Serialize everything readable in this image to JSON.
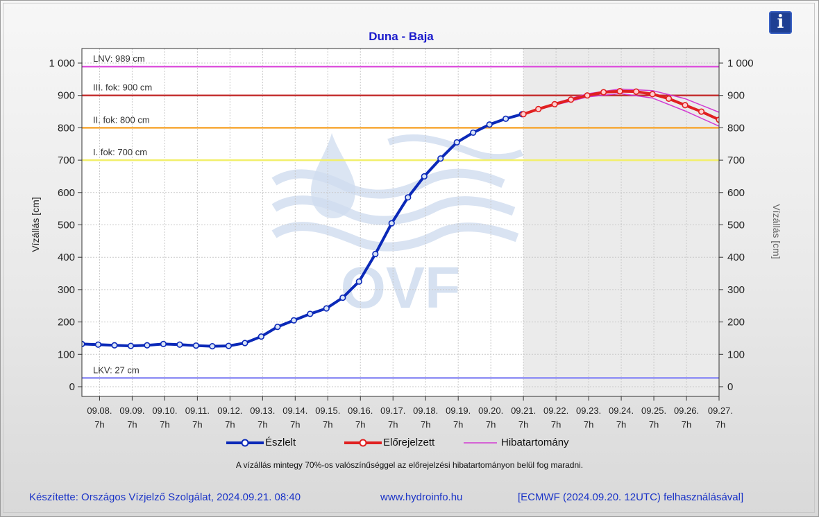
{
  "chart_data": {
    "type": "line",
    "title": "Duna - Baja",
    "ylabel_left": "Vízállás [cm]",
    "ylabel_right": "Vízállás [cm]",
    "ylim": [
      -30,
      1045
    ],
    "y_ticks": [
      0,
      100,
      200,
      300,
      400,
      500,
      600,
      700,
      800,
      900,
      1000
    ],
    "y_tick_labels": [
      "0",
      "100",
      "200",
      "300",
      "400",
      "500",
      "600",
      "700",
      "800",
      "900",
      "1 000"
    ],
    "x_range_days": [
      "2024-09-07T18:00",
      "2024-09-27T07:00"
    ],
    "x_tick_labels": [
      {
        "date": "09.08.",
        "hour": "7h"
      },
      {
        "date": "09.09.",
        "hour": "7h"
      },
      {
        "date": "09.10.",
        "hour": "7h"
      },
      {
        "date": "09.11.",
        "hour": "7h"
      },
      {
        "date": "09.12.",
        "hour": "7h"
      },
      {
        "date": "09.13.",
        "hour": "7h"
      },
      {
        "date": "09.14.",
        "hour": "7h"
      },
      {
        "date": "09.15.",
        "hour": "7h"
      },
      {
        "date": "09.16.",
        "hour": "7h"
      },
      {
        "date": "09.17.",
        "hour": "7h"
      },
      {
        "date": "09.18.",
        "hour": "7h"
      },
      {
        "date": "09.19.",
        "hour": "7h"
      },
      {
        "date": "09.20.",
        "hour": "7h"
      },
      {
        "date": "09.21.",
        "hour": "7h"
      },
      {
        "date": "09.22.",
        "hour": "7h"
      },
      {
        "date": "09.23.",
        "hour": "7h"
      },
      {
        "date": "09.24.",
        "hour": "7h"
      },
      {
        "date": "09.25.",
        "hour": "7h"
      },
      {
        "date": "09.26.",
        "hour": "7h"
      },
      {
        "date": "09.27.",
        "hour": "7h"
      }
    ],
    "forecast_shading_from": "2024-09-21T07:00",
    "reference_lines": [
      {
        "label": "LNV: 989 cm",
        "value": 989,
        "color": "#dd55dd"
      },
      {
        "label": "III. fok: 900 cm",
        "value": 900,
        "color": "#c43030"
      },
      {
        "label": "II. fok: 800 cm",
        "value": 800,
        "color": "#f7a835"
      },
      {
        "label": "I. fok: 700 cm",
        "value": 700,
        "color": "#f2ef6a"
      },
      {
        "label": "LKV: 27 cm",
        "value": 27,
        "color": "#8f8ff5"
      }
    ],
    "series": [
      {
        "name": "Észlelt",
        "color": "#0b29b8",
        "times": [
          "2024-09-07T18:00",
          "2024-09-08T06:00",
          "2024-09-08T18:00",
          "2024-09-09T06:00",
          "2024-09-09T18:00",
          "2024-09-10T06:00",
          "2024-09-10T18:00",
          "2024-09-11T06:00",
          "2024-09-11T18:00",
          "2024-09-12T06:00",
          "2024-09-12T18:00",
          "2024-09-13T06:00",
          "2024-09-13T18:00",
          "2024-09-14T06:00",
          "2024-09-14T18:00",
          "2024-09-15T06:00",
          "2024-09-15T18:00",
          "2024-09-16T06:00",
          "2024-09-16T18:00",
          "2024-09-17T06:00",
          "2024-09-17T18:00",
          "2024-09-18T06:00",
          "2024-09-18T18:00",
          "2024-09-19T06:00",
          "2024-09-19T18:00",
          "2024-09-20T06:00",
          "2024-09-20T18:00",
          "2024-09-21T06:00"
        ],
        "values": [
          132,
          130,
          128,
          126,
          128,
          132,
          130,
          127,
          125,
          126,
          135,
          155,
          185,
          205,
          225,
          242,
          275,
          325,
          410,
          505,
          585,
          650,
          705,
          755,
          785,
          810,
          828,
          842
        ]
      },
      {
        "name": "Előrejelzett",
        "color": "#e02020",
        "times": [
          "2024-09-21T07:00",
          "2024-09-21T18:00",
          "2024-09-22T06:00",
          "2024-09-22T18:00",
          "2024-09-23T06:00",
          "2024-09-23T18:00",
          "2024-09-24T06:00",
          "2024-09-24T18:00",
          "2024-09-25T06:00",
          "2024-09-25T18:00",
          "2024-09-26T06:00",
          "2024-09-26T18:00",
          "2024-09-27T07:00"
        ],
        "values": [
          842,
          858,
          873,
          887,
          900,
          910,
          913,
          912,
          904,
          890,
          870,
          850,
          825
        ]
      },
      {
        "name": "Hibatartomány",
        "color": "#d23ad2",
        "times": [
          "2024-09-21T07:00",
          "2024-09-22T06:00",
          "2024-09-23T06:00",
          "2024-09-24T06:00",
          "2024-09-25T06:00",
          "2024-09-26T06:00",
          "2024-09-27T07:00"
        ],
        "upper": [
          842,
          876,
          905,
          920,
          915,
          890,
          848
        ],
        "lower": [
          842,
          870,
          895,
          906,
          892,
          852,
          805
        ]
      }
    ],
    "legend": [
      "Észlelt",
      "Előrejelzett",
      "Hibatartomány"
    ],
    "legend_position": "bottom-center",
    "grid": true
  },
  "note": "A vízállás mintegy 70%-os valószínűséggel az előrejelzési hibatartományon belül fog maradni.",
  "footer": {
    "author": "Készítette: Országos Vízjelző Szolgálat, 2024.09.21. 08:40",
    "site": "www.hydroinfo.hu",
    "source": "[ECMWF (2024.09.20. 12UTC) felhasználásával]"
  },
  "info_button": {
    "icon": "info-icon",
    "label": "i"
  },
  "watermark": {
    "text": "OVF",
    "color": "#c9d9ee"
  }
}
